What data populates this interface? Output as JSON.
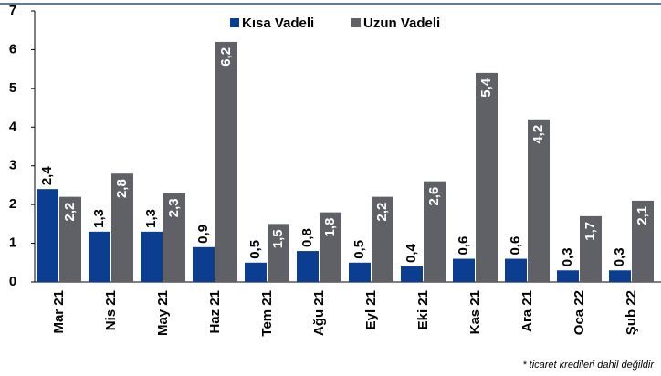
{
  "chart_data": {
    "type": "bar",
    "categories": [
      "Mar 21",
      "Nis 21",
      "May 21",
      "Haz 21",
      "Tem 21",
      "Ağu 21",
      "Eyl 21",
      "Eki 21",
      "Kas 21",
      "Ara 21",
      "Oca 22",
      "Şub 22"
    ],
    "series": [
      {
        "name": "Kısa Vadeli",
        "color": "#0b3d91",
        "values": [
          2.4,
          1.3,
          1.3,
          0.9,
          0.5,
          0.8,
          0.5,
          0.4,
          0.6,
          0.6,
          0.3,
          0.3
        ],
        "value_labels": [
          "2,4",
          "1,3",
          "1,3",
          "0,9",
          "0,5",
          "0,8",
          "0,5",
          "0,4",
          "0,6",
          "0,6",
          "0,3",
          "0,3"
        ]
      },
      {
        "name": "Uzun Vadeli",
        "color": "#5f6166",
        "values": [
          2.2,
          2.8,
          2.3,
          6.2,
          1.5,
          1.8,
          2.2,
          2.6,
          5.4,
          4.2,
          1.7,
          2.1
        ],
        "value_labels": [
          "2,2",
          "2,8",
          "2,3",
          "6,2",
          "1,5",
          "1,8",
          "2,2",
          "2,6",
          "5,4",
          "4,2",
          "1,7",
          "2,1"
        ]
      }
    ],
    "ylim": [
      0,
      7
    ],
    "yticks": [
      0,
      1,
      2,
      3,
      4,
      5,
      6,
      7
    ],
    "legend": "top",
    "annotation": "* ticaret kredileri dahil değildir"
  }
}
